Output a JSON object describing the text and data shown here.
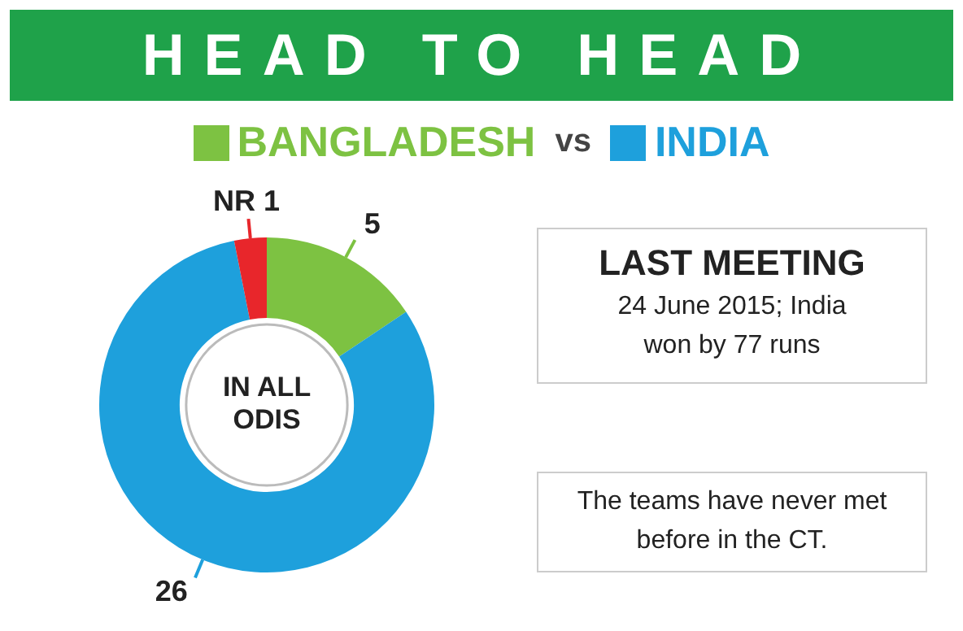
{
  "chart_data": {
    "type": "donut",
    "title": "HEAD TO HEAD",
    "categories": [
      "BANGLADESH",
      "INDIA",
      null
    ],
    "values": [
      5,
      26,
      1
    ],
    "colors": [
      "#7dc242",
      "#1ea0dc",
      "#e8262b"
    ],
    "value_labels": [
      "5",
      "26",
      "NR 1"
    ],
    "legend": "top",
    "annotations": [
      "IN ALL ODIS",
      "vs",
      "LAST MEETING",
      "24 June 2015; India won by 77 runs",
      "The teams have never met before in the CT."
    ]
  }
}
